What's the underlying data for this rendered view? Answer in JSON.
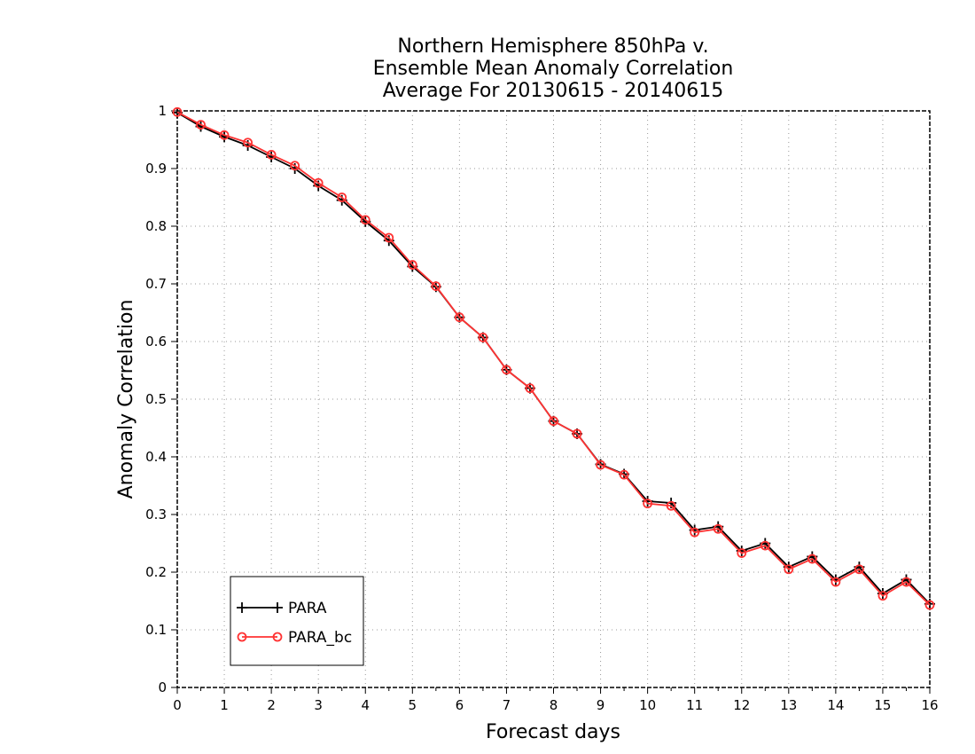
{
  "chart_data": {
    "type": "line",
    "title": [
      "Northern Hemisphere 850hPa v.",
      "Ensemble Mean Anomaly Correlation",
      "Average For 20130615 - 20140615"
    ],
    "xlabel": "Forecast days",
    "ylabel": "Anomaly Correlation",
    "xlim": [
      0,
      16
    ],
    "ylim": [
      0,
      1
    ],
    "x_ticks": [
      0,
      1,
      2,
      3,
      4,
      5,
      6,
      7,
      8,
      9,
      10,
      11,
      12,
      13,
      14,
      15,
      16
    ],
    "y_ticks": [
      0,
      0.1,
      0.2,
      0.3,
      0.4,
      0.5,
      0.6,
      0.7,
      0.8,
      0.9,
      1
    ],
    "y_tick_labels": [
      "0",
      "0.1",
      "0.2",
      "0.3",
      "0.4",
      "0.5",
      "0.6",
      "0.7",
      "0.8",
      "0.9",
      "1"
    ],
    "grid": true,
    "legend_position": "bottom-left",
    "x": [
      0,
      0.5,
      1,
      1.5,
      2,
      2.5,
      3,
      3.5,
      4,
      4.5,
      5,
      5.5,
      6,
      6.5,
      7,
      7.5,
      8,
      8.5,
      9,
      9.5,
      10,
      10.5,
      11,
      11.5,
      12,
      12.5,
      13,
      13.5,
      14,
      14.5,
      15,
      15.5,
      16
    ],
    "series": [
      {
        "name": "PARA",
        "color": "#000000",
        "marker": "plus",
        "values": [
          0.997,
          0.973,
          0.955,
          0.94,
          0.92,
          0.9,
          0.87,
          0.845,
          0.808,
          0.775,
          0.73,
          0.695,
          0.642,
          0.607,
          0.551,
          0.519,
          0.462,
          0.44,
          0.387,
          0.37,
          0.323,
          0.32,
          0.273,
          0.279,
          0.237,
          0.25,
          0.209,
          0.227,
          0.187,
          0.209,
          0.163,
          0.187,
          0.145
        ]
      },
      {
        "name": "PARA_bc",
        "color": "#ff3333",
        "marker": "circle",
        "values": [
          0.998,
          0.976,
          0.958,
          0.945,
          0.924,
          0.905,
          0.875,
          0.85,
          0.811,
          0.78,
          0.733,
          0.696,
          0.642,
          0.607,
          0.551,
          0.519,
          0.462,
          0.44,
          0.386,
          0.369,
          0.319,
          0.315,
          0.269,
          0.275,
          0.233,
          0.246,
          0.205,
          0.223,
          0.183,
          0.205,
          0.159,
          0.183,
          0.143
        ]
      }
    ]
  }
}
